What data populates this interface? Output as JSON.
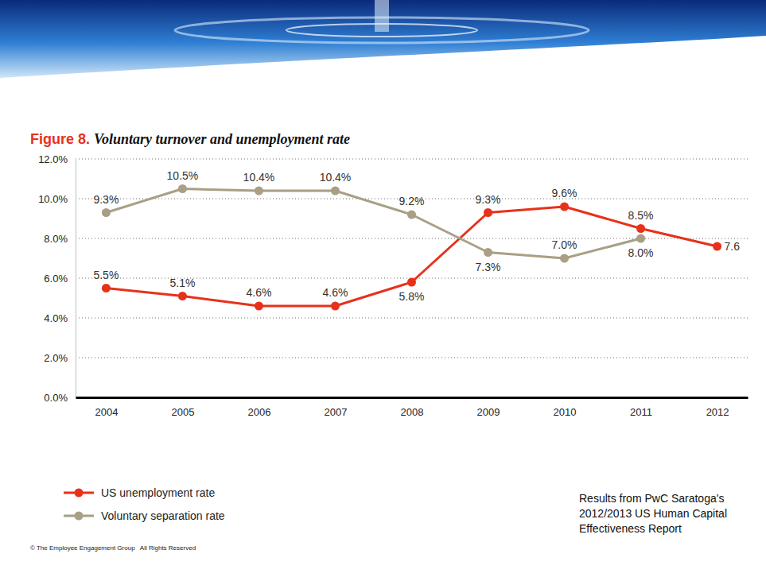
{
  "chart_data": {
    "type": "line",
    "title": "Figure 8. Voluntary turnover and unemployment rate",
    "categories": [
      "2004",
      "2005",
      "2006",
      "2007",
      "2008",
      "2009",
      "2010",
      "2011",
      "2012"
    ],
    "series": [
      {
        "name": "US unemployment rate",
        "color": "#e8311a",
        "marker": "circle",
        "values": [
          5.5,
          5.1,
          4.6,
          4.6,
          5.8,
          9.3,
          9.6,
          8.5,
          7.6
        ],
        "value_labels": [
          "5.5%",
          "5.1%",
          "4.6%",
          "4.6%",
          "5.8%",
          "9.3%",
          "9.6%",
          "8.5%",
          "7.6"
        ]
      },
      {
        "name": "Voluntary separation rate",
        "color": "#a89f85",
        "marker": "circle",
        "values": [
          9.3,
          10.5,
          10.4,
          10.4,
          9.2,
          7.3,
          7.0,
          8.0,
          null
        ],
        "value_labels": [
          "9.3%",
          "10.5%",
          "10.4%",
          "10.4%",
          "9.2%",
          "7.3%",
          "7.0%",
          "8.0%",
          null
        ]
      }
    ],
    "ylim": [
      0,
      12
    ],
    "yticks": [
      {
        "value": 0,
        "label": "0.0%"
      },
      {
        "value": 2,
        "label": "2.0%"
      },
      {
        "value": 4,
        "label": "4.0%"
      },
      {
        "value": 6,
        "label": "6.0%"
      },
      {
        "value": 8,
        "label": "8.0%"
      },
      {
        "value": 10,
        "label": "10.0%"
      },
      {
        "value": 12,
        "label": "12.0%"
      }
    ],
    "grid": true,
    "data_labels": true,
    "legend": "bottom-left",
    "annotations": [
      "© The Employee Engagement Group   All Rights Reserved",
      "Results from PwC Saratoga's 2012/2013 US Human Capital Effectiveness Report"
    ]
  }
}
